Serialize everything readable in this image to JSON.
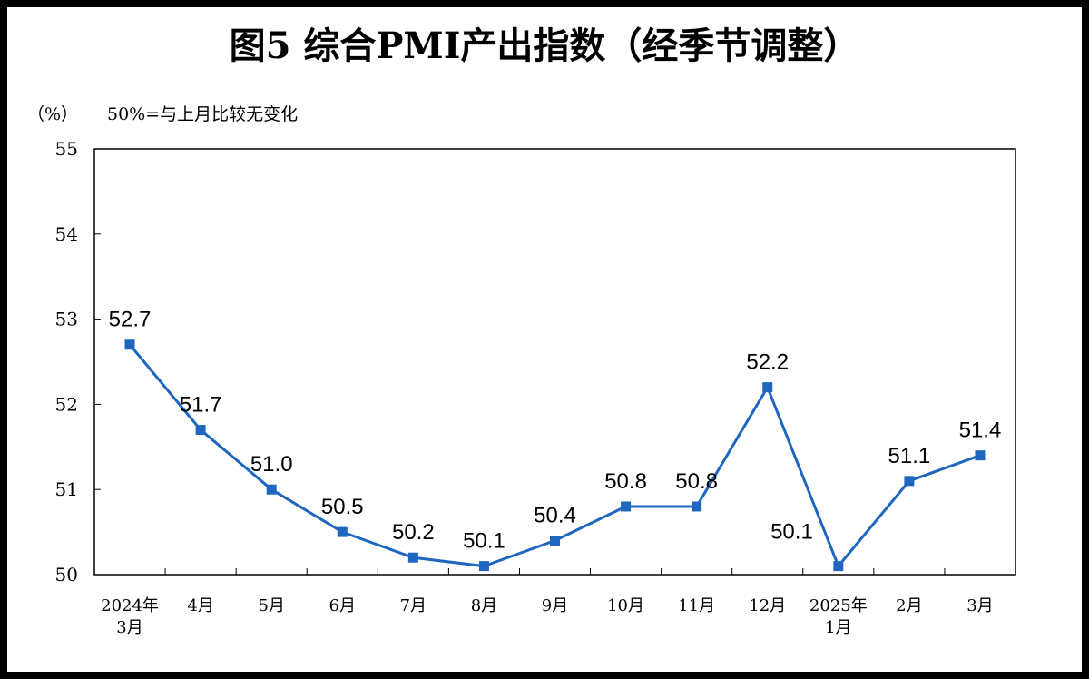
{
  "chart_data": {
    "type": "line",
    "title": "图5  综合PMI产出指数（经季节调整）",
    "unit_label": "（%）",
    "note": "50%=与上月比较无变化",
    "categories": [
      [
        "2024年",
        "3月"
      ],
      [
        "4月"
      ],
      [
        "5月"
      ],
      [
        "6月"
      ],
      [
        "7月"
      ],
      [
        "8月"
      ],
      [
        "9月"
      ],
      [
        "10月"
      ],
      [
        "11月"
      ],
      [
        "12月"
      ],
      [
        "2025年",
        "1月"
      ],
      [
        "2月"
      ],
      [
        "3月"
      ]
    ],
    "series": [
      {
        "values": [
          52.7,
          51.7,
          51.0,
          50.5,
          50.2,
          50.1,
          50.4,
          50.8,
          50.8,
          52.2,
          50.1,
          51.1,
          51.4
        ],
        "labels": [
          "52.7",
          "51.7",
          "51.0",
          "50.5",
          "50.2",
          "50.1",
          "50.4",
          "50.8",
          "50.8",
          "52.2",
          "50.1",
          "51.1",
          "51.4"
        ],
        "color": "#1f66c0"
      }
    ],
    "yticks": [
      "50",
      "51",
      "52",
      "53",
      "54",
      "55"
    ],
    "ylim": [
      50,
      55
    ],
    "grid": false,
    "legend": "none"
  }
}
